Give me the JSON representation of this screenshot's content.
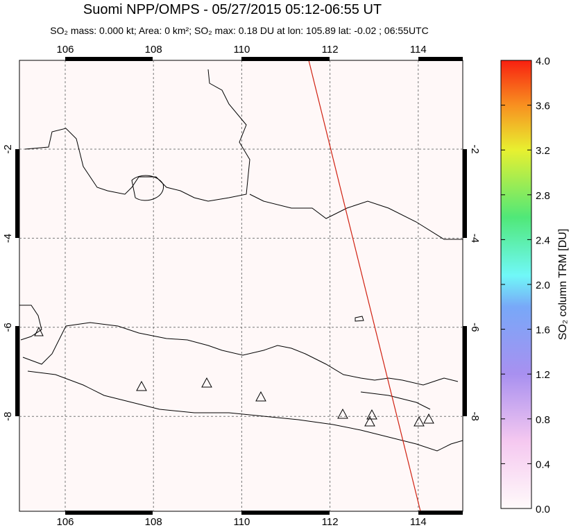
{
  "title": "Suomi NPP/OMPS - 05/27/2015 05:12-06:55 UT",
  "subtitle": "SO₂ mass: 0.000 kt; Area: 0 km²; SO₂ max: 0.18 DU at lon: 105.89 lat: -0.02 ; 06:55UTC",
  "map": {
    "lon_ticks": [
      106,
      108,
      110,
      112,
      114
    ],
    "lat_ticks": [
      -2,
      -4,
      -6,
      -8
    ]
  },
  "colorbar": {
    "label": "SO₂ column TRM [DU]",
    "ticks": [
      {
        "value": 0,
        "label": "0.0"
      },
      {
        "value": 0.4,
        "label": "0.4"
      },
      {
        "value": 0.8,
        "label": "0.8"
      },
      {
        "value": 1.2,
        "label": "1.2"
      },
      {
        "value": 1.6,
        "label": "1.6"
      },
      {
        "value": 2.0,
        "label": "2.0"
      },
      {
        "value": 2.4,
        "label": "2.4"
      },
      {
        "value": 2.8,
        "label": "2.8"
      },
      {
        "value": 3.2,
        "label": "3.2"
      },
      {
        "value": 3.6,
        "label": "3.6"
      },
      {
        "value": 4.0,
        "label": "4.0"
      }
    ]
  }
}
